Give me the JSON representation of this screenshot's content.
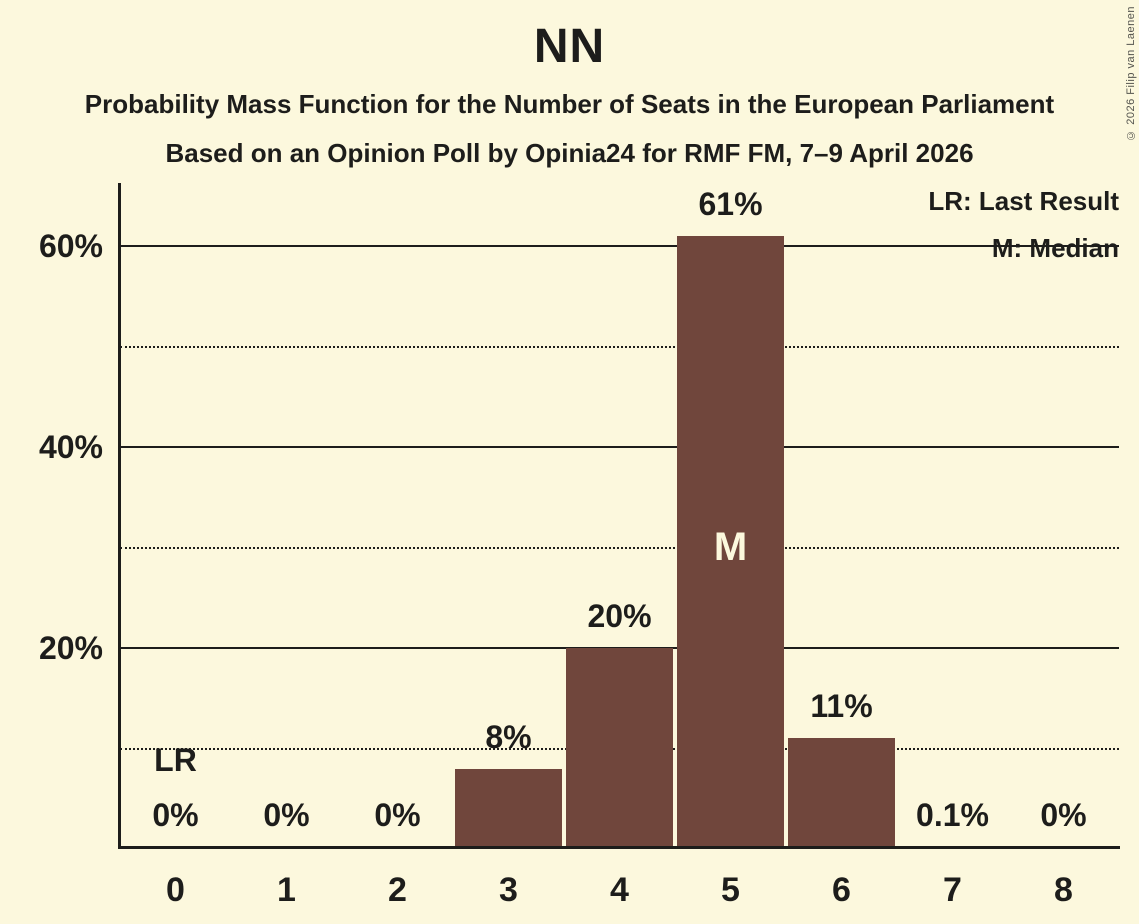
{
  "title": "NN",
  "subtitle1": "Probability Mass Function for the Number of Seats in the European Parliament",
  "subtitle2": "Based on an Opinion Poll by Opinia24 for RMF FM, 7–9 April 2026",
  "copyright": "© 2026 Filip van Laenen",
  "legend": {
    "lr": "LR: Last Result",
    "m": "M: Median"
  },
  "colors": {
    "background": "#FCF8DD",
    "bar": "#70463C",
    "text": "#1D1D1B",
    "bar_annotation_text": "#FCF8DD"
  },
  "chart_data": {
    "type": "bar",
    "title": "NN",
    "categories": [
      "0",
      "1",
      "2",
      "3",
      "4",
      "5",
      "6",
      "7",
      "8"
    ],
    "values": [
      0,
      0,
      0,
      8,
      20,
      61,
      11,
      0.1,
      0
    ],
    "value_labels": [
      "0%",
      "0%",
      "0%",
      "8%",
      "20%",
      "61%",
      "11%",
      "0.1%",
      "0%"
    ],
    "ylim": [
      0,
      66
    ],
    "major_gridlines": [
      20,
      40,
      60
    ],
    "ytick_labels": [
      "20%",
      "40%",
      "60%"
    ],
    "minor_gridlines": [
      10,
      30,
      50
    ],
    "grid": "horizontal",
    "legend_position": "top-right",
    "annotations": [
      {
        "seat": "0",
        "label": "LR",
        "meaning": "Last Result"
      },
      {
        "seat": "5",
        "label": "M",
        "meaning": "Median"
      }
    ]
  }
}
